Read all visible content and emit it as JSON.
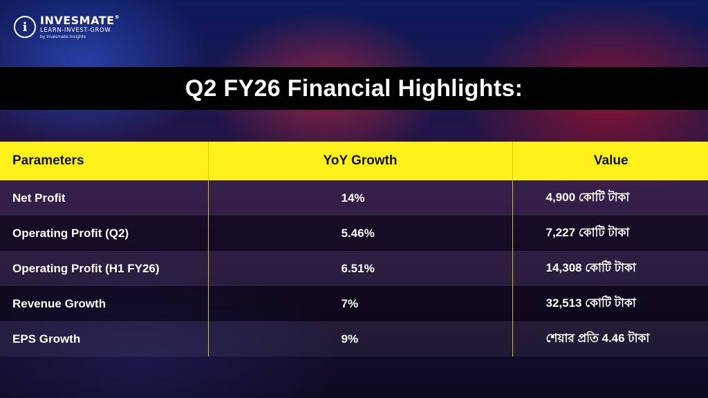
{
  "brand": {
    "name": "INVESMATE",
    "registered": "®",
    "tagline": "LEARN-INVEST-GROW",
    "byline": "by Invesmate Insights",
    "logo_letter": "i"
  },
  "title": "Q2 FY26 Financial Highlights:",
  "table": {
    "headers": [
      "Parameters",
      "YoY Growth",
      "Value"
    ],
    "rows": [
      [
        "Net Profit",
        "14%",
        "4,900 কোটি টাকা"
      ],
      [
        "Operating Profit (Q2)",
        "5.46%",
        "7,227 কোটি টাকা"
      ],
      [
        "Operating Profit (H1 FY26)",
        "6.51%",
        "14,308 কোটি টাকা"
      ],
      [
        "Revenue Growth",
        "7%",
        "32,513 কোটি টাকা"
      ],
      [
        "EPS Growth",
        "9%",
        "শেয়ার প্রতি 4.46 টাকা"
      ]
    ]
  },
  "colors": {
    "header_bg": "#fff21a",
    "title_bar_bg": "#000000",
    "text": "#ffffff"
  }
}
